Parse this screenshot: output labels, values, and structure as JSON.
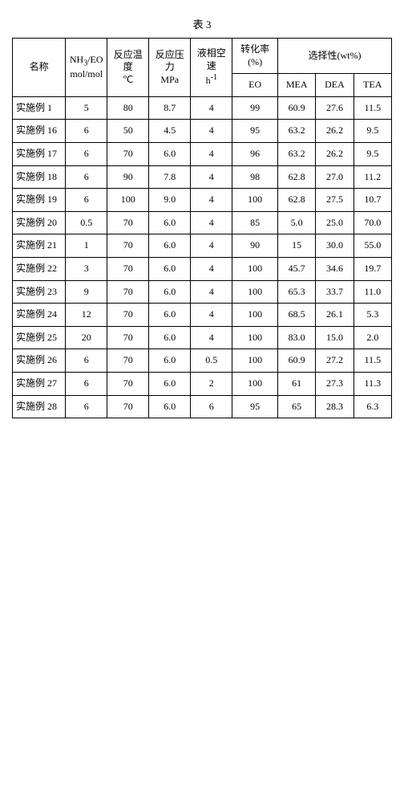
{
  "table_label": "表 3",
  "headers": {
    "name": "名称",
    "ratio": "NH₃/EO\nmol/mol",
    "temp": "反应温度\n℃",
    "pressure": "反应压力\nMPa",
    "lhsv": "液相空速\nh⁻¹",
    "conv_group": "转化率 (%)",
    "conv_eo": "EO",
    "sel_group": "选择性(wt%)",
    "sel_mea": "MEA",
    "sel_dea": "DEA",
    "sel_tea": "TEA"
  },
  "rows": [
    {
      "name": "实施例 1",
      "ratio": "5",
      "temp": "80",
      "pressure": "8.7",
      "lhsv": "4",
      "eo": "99",
      "mea": "60.9",
      "dea": "27.6",
      "tea": "11.5"
    },
    {
      "name": "实施例 16",
      "ratio": "6",
      "temp": "50",
      "pressure": "4.5",
      "lhsv": "4",
      "eo": "95",
      "mea": "63.2",
      "dea": "26.2",
      "tea": "9.5"
    },
    {
      "name": "实施例 17",
      "ratio": "6",
      "temp": "70",
      "pressure": "6.0",
      "lhsv": "4",
      "eo": "96",
      "mea": "63.2",
      "dea": "26.2",
      "tea": "9.5"
    },
    {
      "name": "实施例 18",
      "ratio": "6",
      "temp": "90",
      "pressure": "7.8",
      "lhsv": "4",
      "eo": "98",
      "mea": "62.8",
      "dea": "27.0",
      "tea": "11.2"
    },
    {
      "name": "实施例 19",
      "ratio": "6",
      "temp": "100",
      "pressure": "9.0",
      "lhsv": "4",
      "eo": "100",
      "mea": "62.8",
      "dea": "27.5",
      "tea": "10.7"
    },
    {
      "name": "实施例 20",
      "ratio": "0.5",
      "temp": "70",
      "pressure": "6.0",
      "lhsv": "4",
      "eo": "85",
      "mea": "5.0",
      "dea": "25.0",
      "tea": "70.0"
    },
    {
      "name": "实施例 21",
      "ratio": "1",
      "temp": "70",
      "pressure": "6.0",
      "lhsv": "4",
      "eo": "90",
      "mea": "15",
      "dea": "30.0",
      "tea": "55.0"
    },
    {
      "name": "实施例 22",
      "ratio": "3",
      "temp": "70",
      "pressure": "6.0",
      "lhsv": "4",
      "eo": "100",
      "mea": "45.7",
      "dea": "34.6",
      "tea": "19.7"
    },
    {
      "name": "实施例 23",
      "ratio": "9",
      "temp": "70",
      "pressure": "6.0",
      "lhsv": "4",
      "eo": "100",
      "mea": "65.3",
      "dea": "33.7",
      "tea": "11.0"
    },
    {
      "name": "实施例 24",
      "ratio": "12",
      "temp": "70",
      "pressure": "6.0",
      "lhsv": "4",
      "eo": "100",
      "mea": "68.5",
      "dea": "26.1",
      "tea": "5.3"
    },
    {
      "name": "实施例 25",
      "ratio": "20",
      "temp": "70",
      "pressure": "6.0",
      "lhsv": "4",
      "eo": "100",
      "mea": "83.0",
      "dea": "15.0",
      "tea": "2.0"
    },
    {
      "name": "实施例 26",
      "ratio": "6",
      "temp": "70",
      "pressure": "6.0",
      "lhsv": "0.5",
      "eo": "100",
      "mea": "60.9",
      "dea": "27.2",
      "tea": "11.5"
    },
    {
      "name": "实施例 27",
      "ratio": "6",
      "temp": "70",
      "pressure": "6.0",
      "lhsv": "2",
      "eo": "100",
      "mea": "61",
      "dea": "27.3",
      "tea": "11.3"
    },
    {
      "name": "实施例 28",
      "ratio": "6",
      "temp": "70",
      "pressure": "6.0",
      "lhsv": "6",
      "eo": "95",
      "mea": "65",
      "dea": "28.3",
      "tea": "6.3"
    }
  ]
}
